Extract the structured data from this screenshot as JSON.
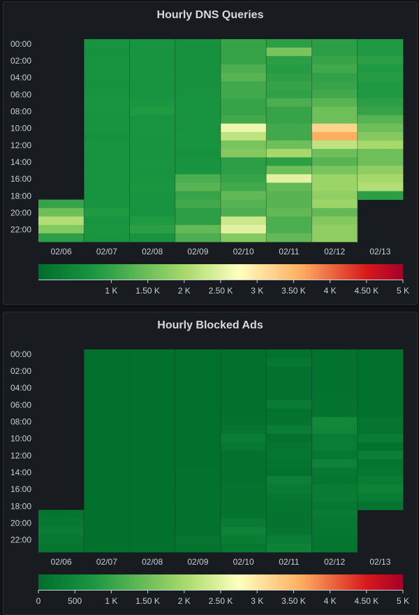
{
  "scale": {
    "colors": [
      "#006d2c",
      "#1a9641",
      "#a6d96a",
      "#ffffbf",
      "#fdae61",
      "#d7191c",
      "#a50026"
    ],
    "stops": [
      0,
      0.15,
      0.4,
      0.55,
      0.72,
      0.9,
      1
    ]
  },
  "chart_data": [
    {
      "type": "heatmap",
      "title": "Hourly DNS Queries",
      "x": [
        "02/06",
        "02/07",
        "02/08",
        "02/09",
        "02/10",
        "02/11",
        "02/12",
        "02/13"
      ],
      "y": [
        "00:00",
        "02:00",
        "04:00",
        "06:00",
        "08:00",
        "10:00",
        "12:00",
        "14:00",
        "16:00",
        "18:00",
        "20:00",
        "22:00"
      ],
      "y_hours": [
        0,
        1,
        2,
        3,
        4,
        5,
        6,
        7,
        8,
        9,
        10,
        11,
        12,
        13,
        14,
        15,
        16,
        17,
        18,
        19,
        20,
        21,
        22,
        23
      ],
      "legend_min": 0,
      "legend_max": 5000,
      "legend_ticks": [
        {
          "v": 1000,
          "label": "1 K"
        },
        {
          "v": 1500,
          "label": "1.50 K"
        },
        {
          "v": 2000,
          "label": "2 K"
        },
        {
          "v": 2500,
          "label": "2.50 K"
        },
        {
          "v": 3000,
          "label": "3 K"
        },
        {
          "v": 3500,
          "label": "3.50 K"
        },
        {
          "v": 4000,
          "label": "4 K"
        },
        {
          "v": 4500,
          "label": "4.50 K"
        },
        {
          "v": 5000,
          "label": "5 K"
        }
      ],
      "values": [
        [
          null,
          null,
          null,
          null,
          null,
          null,
          null,
          null,
          null,
          null,
          null,
          null,
          null,
          null,
          null,
          null,
          null,
          null,
          null,
          1000,
          1500,
          2100,
          1700,
          900
        ],
        [
          700,
          650,
          700,
          700,
          680,
          650,
          700,
          720,
          700,
          700,
          700,
          650,
          700,
          700,
          700,
          700,
          700,
          700,
          700,
          700,
          800,
          700,
          750,
          700
        ],
        [
          700,
          700,
          700,
          700,
          700,
          680,
          700,
          750,
          800,
          700,
          720,
          700,
          700,
          700,
          720,
          700,
          700,
          750,
          700,
          700,
          700,
          800,
          900,
          700
        ],
        [
          650,
          650,
          650,
          650,
          650,
          650,
          680,
          700,
          700,
          700,
          680,
          700,
          700,
          650,
          700,
          700,
          1200,
          1300,
          1000,
          1100,
          900,
          900,
          1400,
          1200
        ],
        [
          1000,
          1000,
          1000,
          1200,
          1300,
          1100,
          1100,
          1000,
          1000,
          1100,
          2600,
          2200,
          1600,
          1700,
          900,
          900,
          1000,
          1100,
          1400,
          1300,
          1200,
          2300,
          2500,
          1700
        ],
        [
          900,
          1600,
          900,
          850,
          900,
          1000,
          950,
          1200,
          1000,
          1000,
          1100,
          1100,
          1500,
          2000,
          900,
          1500,
          2500,
          1400,
          1300,
          1300,
          1400,
          1200,
          1200,
          1400
        ],
        [
          900,
          900,
          1000,
          1100,
          950,
          1000,
          1100,
          1300,
          1500,
          1500,
          3200,
          3600,
          2200,
          1500,
          1300,
          1600,
          1900,
          1900,
          1800,
          1900,
          1400,
          1700,
          1800,
          1800
        ],
        [
          800,
          800,
          900,
          800,
          850,
          800,
          800,
          900,
          1000,
          1300,
          1500,
          1700,
          2000,
          1500,
          1500,
          1800,
          2000,
          2100,
          900,
          null,
          null,
          null,
          null,
          null
        ]
      ]
    },
    {
      "type": "heatmap",
      "title": "Hourly Blocked Ads",
      "x": [
        "02/06",
        "02/07",
        "02/08",
        "02/09",
        "02/10",
        "02/11",
        "02/12",
        "02/13"
      ],
      "y": [
        "00:00",
        "02:00",
        "04:00",
        "06:00",
        "08:00",
        "10:00",
        "12:00",
        "14:00",
        "16:00",
        "18:00",
        "20:00",
        "22:00"
      ],
      "y_hours": [
        0,
        1,
        2,
        3,
        4,
        5,
        6,
        7,
        8,
        9,
        10,
        11,
        12,
        13,
        14,
        15,
        16,
        17,
        18,
        19,
        20,
        21,
        22,
        23
      ],
      "legend_min": 0,
      "legend_max": 5000,
      "legend_ticks": [
        {
          "v": 0,
          "label": "0"
        },
        {
          "v": 500,
          "label": "500"
        },
        {
          "v": 1000,
          "label": "1 K"
        },
        {
          "v": 1500,
          "label": "1.50 K"
        },
        {
          "v": 2000,
          "label": "2 K"
        },
        {
          "v": 2500,
          "label": "2.50 K"
        },
        {
          "v": 3000,
          "label": "3 K"
        },
        {
          "v": 3500,
          "label": "3.50 K"
        },
        {
          "v": 4000,
          "label": "4 K"
        },
        {
          "v": 4500,
          "label": "4.50 K"
        },
        {
          "v": 5000,
          "label": "5 K"
        }
      ],
      "values": [
        [
          null,
          null,
          null,
          null,
          null,
          null,
          null,
          null,
          null,
          null,
          null,
          null,
          null,
          null,
          null,
          null,
          null,
          null,
          null,
          150,
          200,
          280,
          200,
          150
        ],
        [
          80,
          80,
          80,
          80,
          80,
          80,
          80,
          80,
          80,
          80,
          80,
          80,
          80,
          80,
          80,
          80,
          80,
          80,
          80,
          80,
          80,
          80,
          80,
          80
        ],
        [
          80,
          80,
          80,
          80,
          80,
          80,
          80,
          80,
          80,
          80,
          80,
          80,
          80,
          80,
          80,
          80,
          80,
          80,
          80,
          80,
          80,
          80,
          80,
          80
        ],
        [
          80,
          80,
          80,
          80,
          80,
          80,
          80,
          80,
          80,
          80,
          80,
          80,
          80,
          80,
          100,
          100,
          100,
          110,
          100,
          100,
          100,
          100,
          160,
          110
        ],
        [
          80,
          80,
          80,
          80,
          80,
          80,
          80,
          80,
          100,
          150,
          300,
          200,
          100,
          100,
          100,
          100,
          120,
          120,
          120,
          120,
          250,
          400,
          300,
          200
        ],
        [
          100,
          180,
          100,
          100,
          100,
          100,
          250,
          100,
          120,
          300,
          100,
          150,
          180,
          130,
          100,
          350,
          250,
          180,
          150,
          120,
          130,
          150,
          300,
          400
        ],
        [
          100,
          100,
          100,
          100,
          100,
          110,
          120,
          130,
          500,
          450,
          300,
          300,
          200,
          400,
          220,
          150,
          250,
          280,
          200,
          250,
          200,
          200,
          140,
          130
        ],
        [
          80,
          80,
          80,
          80,
          80,
          80,
          80,
          80,
          140,
          120,
          280,
          100,
          330,
          150,
          200,
          300,
          400,
          300,
          130,
          null,
          null,
          null,
          null,
          null
        ]
      ]
    }
  ]
}
